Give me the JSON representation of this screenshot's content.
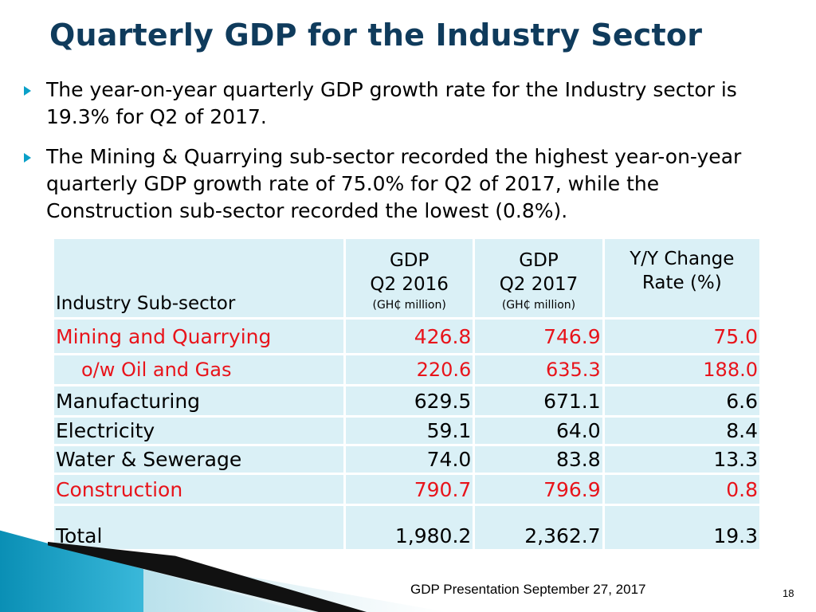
{
  "title": "Quarterly GDP for the Industry Sector",
  "bullets": [
    "The year-on-year quarterly GDP growth rate for the Industry sector is 19.3% for Q2 of 2017.",
    "The Mining & Quarrying sub-sector recorded the highest year-on-year quarterly GDP growth rate of 75.0% for Q2 of 2017, while the Construction sub-sector recorded the lowest (0.8%)."
  ],
  "table": {
    "header": {
      "sector": "Industry Sub-sector",
      "col1_line1": "GDP",
      "col1_line2": "Q2 2016",
      "col1_unit": "(GH₵ million)",
      "col2_line1": "GDP",
      "col2_line2": "Q2 2017",
      "col2_unit": "(GH₵ million)",
      "col3_line1": "Y/Y Change",
      "col3_line2": "Rate (%)"
    },
    "rows": [
      {
        "name": "Mining and Quarrying",
        "q2_2016": "426.8",
        "q2_2017": "746.9",
        "change": "75.0"
      },
      {
        "name": "o/w Oil and Gas",
        "q2_2016": "220.6",
        "q2_2017": "635.3",
        "change": "188.0"
      },
      {
        "name": "Manufacturing",
        "q2_2016": "629.5",
        "q2_2017": "671.1",
        "change": "6.6"
      },
      {
        "name": "Electricity",
        "q2_2016": "59.1",
        "q2_2017": "64.0",
        "change": "8.4"
      },
      {
        "name": "Water & Sewerage",
        "q2_2016": "74.0",
        "q2_2017": "83.8",
        "change": "13.3"
      },
      {
        "name": "Construction",
        "q2_2016": "790.7",
        "q2_2017": "796.9",
        "change": "0.8"
      }
    ],
    "total": {
      "name": "Total",
      "q2_2016": "1,980.2",
      "q2_2017": "2,362.7",
      "change": "19.3"
    }
  },
  "footer": "GDP Presentation September 27, 2017",
  "page_number": "18",
  "colors": {
    "title": "#0f3b5c",
    "bullet_arrow": "#0aa0c8",
    "table_cell": "#daf0f6",
    "highlight_red": "#e8141b"
  },
  "icons": {
    "bullet": "right-triangle-arrow"
  }
}
